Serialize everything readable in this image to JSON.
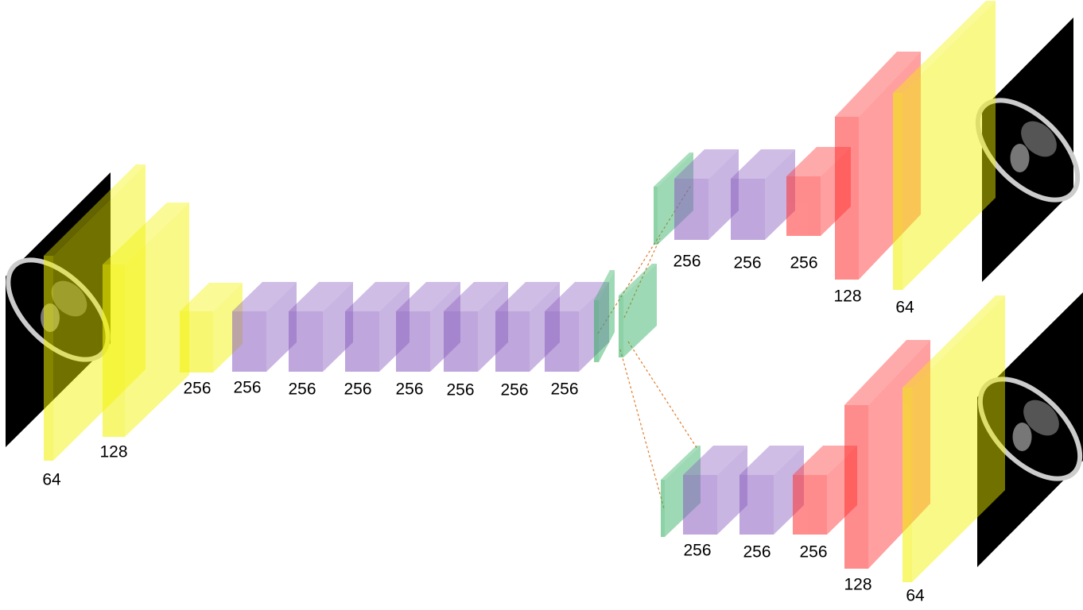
{
  "encoder": {
    "labels": [
      "64",
      "128",
      "256",
      "256",
      "256",
      "256",
      "256",
      "256",
      "256",
      "256"
    ]
  },
  "decoder_top": {
    "labels": [
      "256",
      "256",
      "256",
      "128",
      "64"
    ]
  },
  "decoder_bottom": {
    "labels": [
      "256",
      "256",
      "256",
      "128",
      "64"
    ]
  }
}
